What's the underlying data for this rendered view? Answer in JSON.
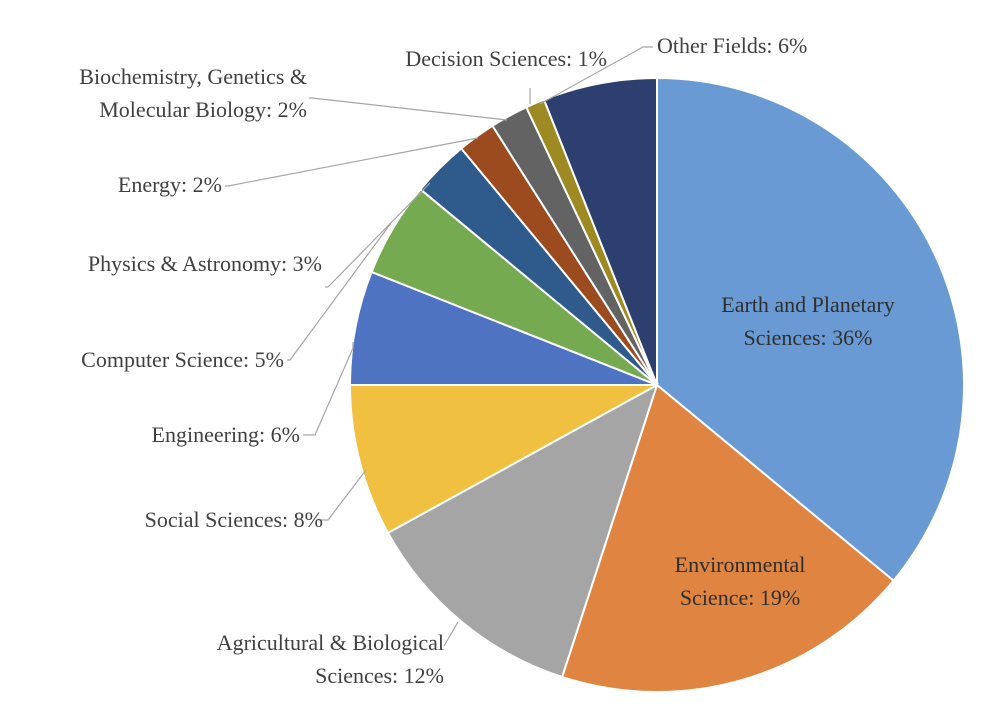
{
  "chart_data": {
    "type": "pie",
    "title": "",
    "slices": [
      {
        "label": "Earth and Planetary Sciences",
        "value": 36,
        "display": "Earth and Planetary Sciences: 36%",
        "lines": [
          "Earth and Planetary",
          "Sciences: 36%"
        ],
        "color": "#6a9ad3"
      },
      {
        "label": "Environmental Science",
        "value": 19,
        "display": "Environmental Science: 19%",
        "lines": [
          "Environmental",
          "Science: 19%"
        ],
        "color": "#e08442"
      },
      {
        "label": "Agricultural & Biological Sciences",
        "value": 12,
        "display": "Agricultural & Biological Sciences: 12%",
        "lines": [
          "Agricultural & Biological",
          "Sciences: 12%"
        ],
        "color": "#a5a5a5"
      },
      {
        "label": "Social Sciences",
        "value": 8,
        "display": "Social Sciences: 8%",
        "lines": [
          "Social Sciences: 8%"
        ],
        "color": "#f2c040"
      },
      {
        "label": "Engineering",
        "value": 6,
        "display": "Engineering: 6%",
        "lines": [
          "Engineering: 6%"
        ],
        "color": "#4e73c3"
      },
      {
        "label": "Computer Science",
        "value": 5,
        "display": "Computer Science: 5%",
        "lines": [
          "Computer Science: 5%"
        ],
        "color": "#76aa50"
      },
      {
        "label": "Physics & Astronomy",
        "value": 3,
        "display": "Physics & Astronomy: 3%",
        "lines": [
          "Physics & Astronomy: 3%"
        ],
        "color": "#2e5a8c"
      },
      {
        "label": "Energy",
        "value": 2,
        "display": "Energy: 2%",
        "lines": [
          "Energy: 2%"
        ],
        "color": "#9b4b1e"
      },
      {
        "label": "Biochemistry, Genetics & Molecular Biology",
        "value": 2,
        "display": "Biochemistry, Genetics & Molecular Biology: 2%",
        "lines": [
          "Biochemistry, Genetics &",
          "Molecular Biology: 2%"
        ],
        "color": "#636363"
      },
      {
        "label": "Decision Sciences",
        "value": 1,
        "display": "Decision Sciences: 1%",
        "lines": [
          "Decision Sciences: 1%"
        ],
        "color": "#9e8a22"
      },
      {
        "label": "Other Fields",
        "value": 6,
        "display": "Other Fields: 6%",
        "lines": [
          "Other Fields: 6%"
        ],
        "color": "#2c3f6e"
      }
    ]
  }
}
